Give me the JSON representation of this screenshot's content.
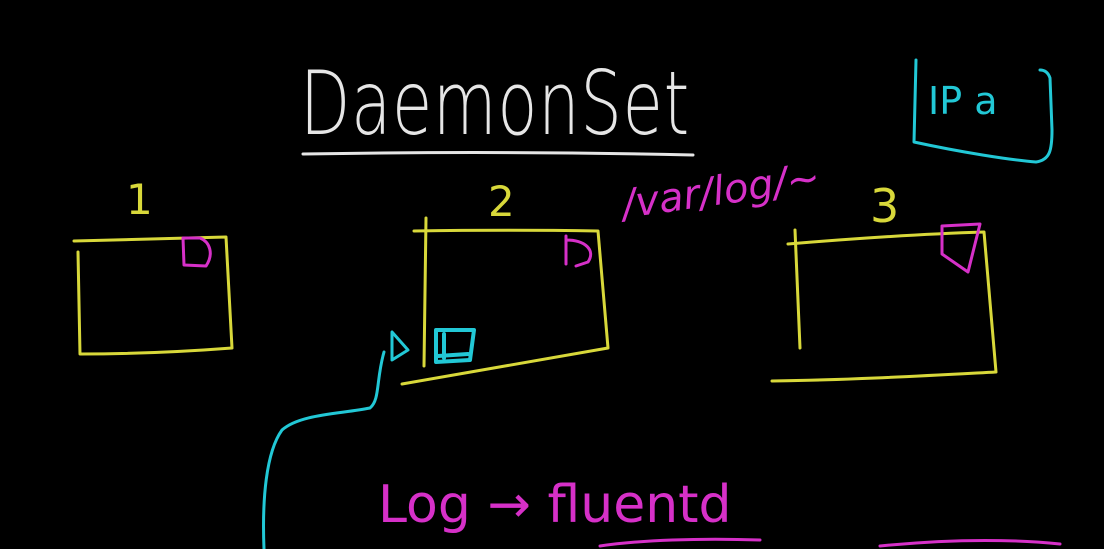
{
  "title": "DaemonSet",
  "ip_badge": "IP a",
  "path_label": "/var/log/~",
  "footer_text": "Log → fluentd",
  "nodes": [
    {
      "label": "1"
    },
    {
      "label": "2"
    },
    {
      "label": "3"
    }
  ],
  "colors": {
    "background": "#000000",
    "title": "#e6e6e6",
    "node": "#d8d83a",
    "pod": "#d630c8",
    "daemon": "#22c8d6"
  }
}
